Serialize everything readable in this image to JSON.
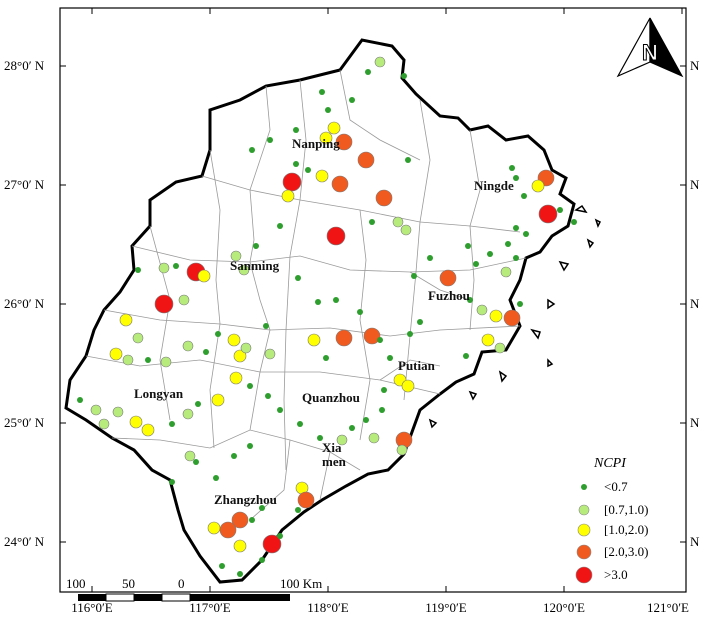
{
  "lat_labels": [
    "28°0′ N",
    "27°0′ N",
    "26°0′ N",
    "25°0′ N",
    "24°0′ N"
  ],
  "lon_labels": [
    "116°0′E",
    "117°0′E",
    "118°0′E",
    "119°0′E",
    "120°0′E",
    "121°0′E"
  ],
  "north_arrow": {
    "label": "N"
  },
  "cities": [
    {
      "name": "Nanping"
    },
    {
      "name": "Ningde"
    },
    {
      "name": "Sanming"
    },
    {
      "name": "Fuzhou"
    },
    {
      "name": "Putian"
    },
    {
      "name": "Longyan"
    },
    {
      "name": "Quanzhou"
    },
    {
      "name": "Xia"
    },
    {
      "name": "men"
    },
    {
      "name": "Zhangzhou"
    }
  ],
  "legend": {
    "title": "NCPI",
    "items": [
      {
        "label": "<0.7",
        "color": "#2e9e2e"
      },
      {
        "label": "[0.7,1.0)",
        "color": "#b7ec7c"
      },
      {
        "label": "[1.0,2.0)",
        "color": "#ffff00"
      },
      {
        "label": "[2.0,3.0)",
        "color": "#f05a1e"
      },
      {
        "label": ">3.0",
        "color": "#f01414"
      }
    ]
  },
  "scale_bar": {
    "labels": [
      "100",
      "50",
      "0",
      "100 Km"
    ]
  },
  "colors": {
    "boundary": "#000000",
    "county_lines": "#9a9a9a",
    "frame": "#000000"
  }
}
